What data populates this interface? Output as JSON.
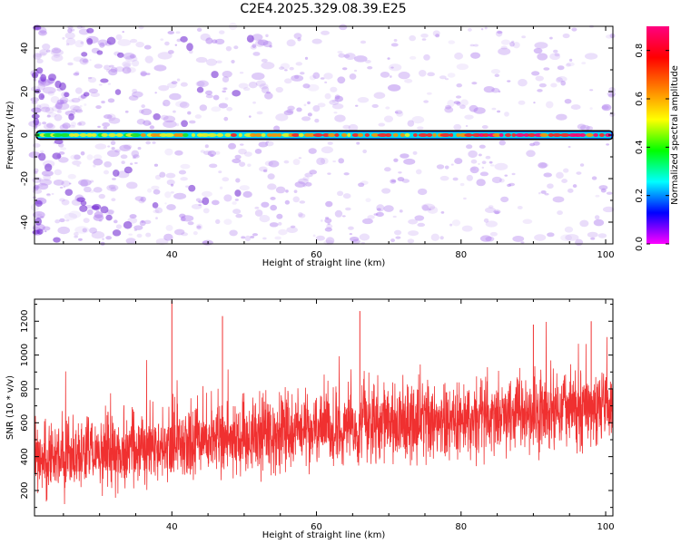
{
  "title": "C2E4.2025.329.08.39.E25",
  "colors": {
    "signal": "#f03030",
    "noise_speckle": "#b080ee",
    "band_outline": "#000000",
    "colorbar_stops": [
      "#ff00ff",
      "#0000ff",
      "#00ffff",
      "#00ff00",
      "#ffff00",
      "#ff8000",
      "#ff0000",
      "#ff0080"
    ]
  },
  "chart_data": [
    {
      "type": "heatmap",
      "xlabel": "Height of straight line (km)",
      "ylabel": "Frequency (Hz)",
      "xlim": [
        21,
        101
      ],
      "ylim": [
        -50,
        50
      ],
      "x_ticks": [
        "40",
        "60",
        "80",
        "100"
      ],
      "y_ticks": [
        "-40",
        "-20",
        "0",
        "20",
        "40"
      ],
      "features": {
        "band": {
          "frequency": 0,
          "half_width": 2,
          "x_range": [
            21,
            101
          ]
        },
        "noise": "scattered low-amplitude speckle, denser at low heights"
      },
      "colorbar": {
        "label": "Normalized spectral amplitude",
        "range": [
          0,
          0.9
        ],
        "ticks": [
          "0.0",
          "0.2",
          "0.4",
          "0.6",
          "0.8"
        ]
      }
    },
    {
      "type": "line",
      "xlabel": "Height of straight line (km)",
      "ylabel": "SNR (10 * v/v)",
      "xlim": [
        21,
        101
      ],
      "ylim": [
        50,
        1330
      ],
      "x_ticks": [
        "40",
        "60",
        "80",
        "100"
      ],
      "y_ticks": [
        "200",
        "400",
        "600",
        "800",
        "1000",
        "1200"
      ],
      "series": [
        {
          "mean_trend": {
            "x": [
              21,
              30,
              40,
              50,
              60,
              70,
              80,
              90,
              101
            ],
            "y": [
              400,
              420,
              470,
              520,
              560,
              590,
              620,
              640,
              700
            ]
          },
          "spread": 170,
          "peaks": {
            "x": [
              40,
              47,
              66,
              90,
              98
            ],
            "y": [
              1320,
              1230,
              1260,
              1180,
              1200
            ]
          }
        }
      ]
    }
  ]
}
